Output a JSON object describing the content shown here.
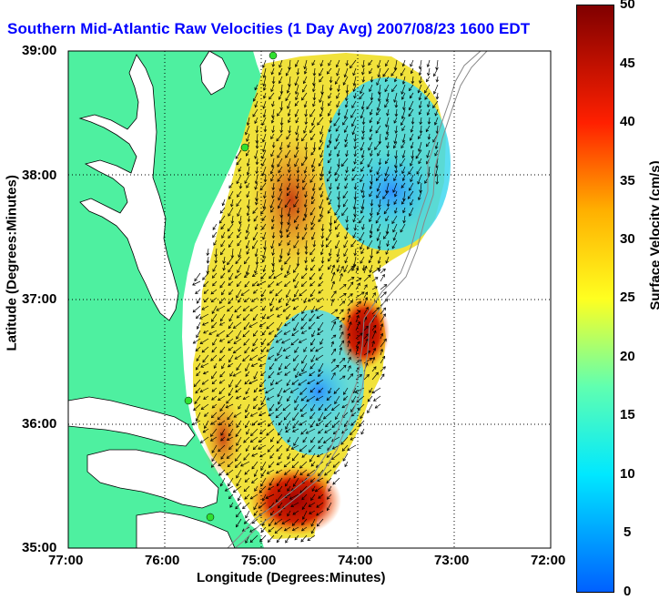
{
  "title": "Southern Mid-Atlantic Raw Velocities (1 Day Avg) 2007/08/23 1600 EDT",
  "x_axis": {
    "label": "Longitude (Degrees:Minutes)",
    "ticks": [
      "77:00",
      "76:00",
      "75:00",
      "74:00",
      "73:00",
      "72:00"
    ]
  },
  "y_axis": {
    "label": "Latitude (Degrees:Minutes)",
    "ticks": [
      "39:00",
      "38:00",
      "37:00",
      "36:00",
      "35:00"
    ]
  },
  "colorbar": {
    "label": "Surface Velocity (cm/s)",
    "ticks": [
      "50",
      "45",
      "40",
      "35",
      "30",
      "25",
      "20",
      "15",
      "10",
      "5",
      "0"
    ],
    "range": [
      0,
      50
    ]
  },
  "colors": {
    "land": "#4ef0a0",
    "water": "#ffffff",
    "title": "#0000ff",
    "grid": "#000000"
  },
  "map": {
    "lon_range": [
      -77,
      -72
    ],
    "lat_range": [
      35,
      39
    ],
    "grid": "dotted",
    "features": [
      "land",
      "coastline",
      "velocity-field",
      "velocity-vectors",
      "radar-sites",
      "shelf-contours"
    ]
  }
}
